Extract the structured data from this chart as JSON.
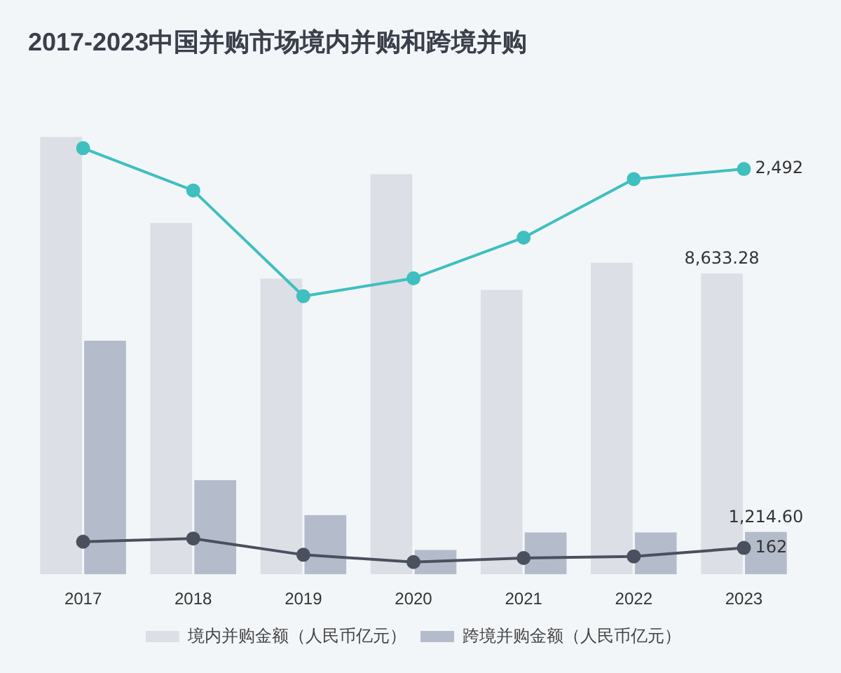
{
  "chart_data": {
    "type": "bar",
    "title": "2017-2023中国并购市场境内并购和跨境并购",
    "categories": [
      "2017",
      "2018",
      "2019",
      "2020",
      "2021",
      "2022",
      "2023"
    ],
    "series": [
      {
        "name": "境内并购金额（人民币亿元）",
        "color": "#dcdfe5",
        "values": [
          12550,
          10080,
          8480,
          11480,
          8160,
          8940,
          8633.28
        ],
        "value_labels": [
          null,
          null,
          null,
          null,
          null,
          null,
          "8,633.28"
        ]
      },
      {
        "name": "跨境并购金额（人民币亿元）",
        "color": "#b4bccb",
        "values": [
          6700,
          2700,
          1700,
          700,
          1200,
          1200,
          1214.6
        ],
        "value_labels": [
          null,
          null,
          null,
          null,
          null,
          null,
          "1,214.60"
        ]
      },
      {
        "type": "line",
        "axis": "y2",
        "color": "#3fbfbf",
        "values": [
          2620,
          2360,
          1710,
          1820,
          2070,
          2430,
          2492
        ],
        "value_labels": [
          null,
          null,
          null,
          null,
          null,
          null,
          "2,492"
        ]
      },
      {
        "type": "line",
        "axis": "y2",
        "color": "#4a505e",
        "values": [
          200,
          220,
          120,
          75,
          100,
          110,
          162
        ],
        "value_labels": [
          null,
          null,
          null,
          null,
          null,
          null,
          "162"
        ]
      }
    ],
    "tick_labels": "x",
    "grid": false,
    "legend": "bottom",
    "marker": "circle"
  }
}
